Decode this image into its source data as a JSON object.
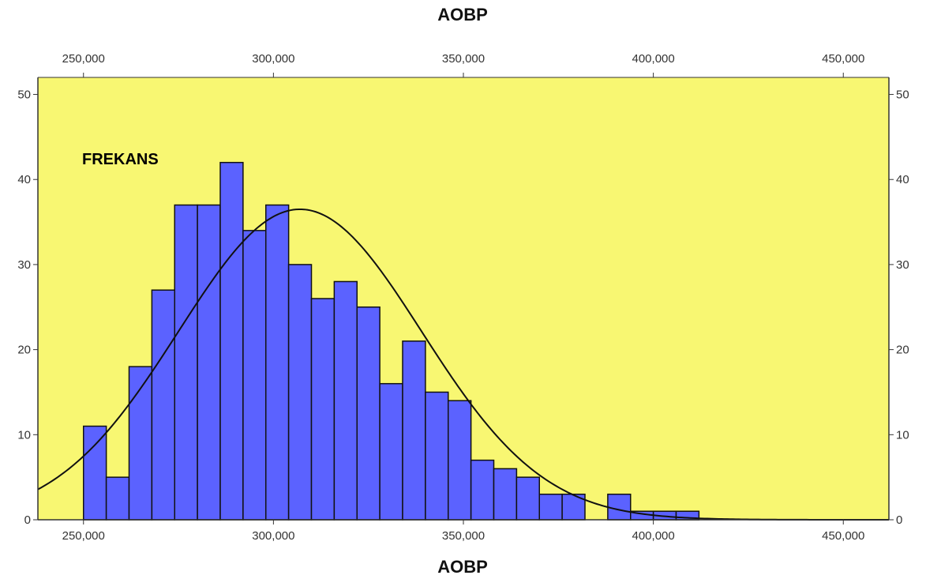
{
  "chart_data": {
    "type": "bar",
    "title": "AOBP",
    "xlabel": "AOBP",
    "ylabel": "FREKANS",
    "xlim": [
      238000,
      462000
    ],
    "ylim": [
      0,
      52
    ],
    "bin_width": 6000,
    "x_ticks": [
      250000,
      300000,
      350000,
      400000,
      450000
    ],
    "x_tick_labels": [
      "250,000",
      "300,000",
      "350,000",
      "400,000",
      "450,000"
    ],
    "y_ticks": [
      0,
      10,
      20,
      30,
      40,
      50
    ],
    "y_tick_labels_left": [
      "0",
      "10",
      "20",
      "30",
      "40",
      "50"
    ],
    "y_tick_labels_right": [
      "0",
      "10",
      "20",
      "30",
      "40",
      "50"
    ],
    "bins": [
      {
        "start": 250000,
        "value": 11
      },
      {
        "start": 256000,
        "value": 5
      },
      {
        "start": 262000,
        "value": 18
      },
      {
        "start": 268000,
        "value": 27
      },
      {
        "start": 274000,
        "value": 37
      },
      {
        "start": 280000,
        "value": 37
      },
      {
        "start": 286000,
        "value": 42
      },
      {
        "start": 292000,
        "value": 34
      },
      {
        "start": 298000,
        "value": 37
      },
      {
        "start": 304000,
        "value": 30
      },
      {
        "start": 310000,
        "value": 26
      },
      {
        "start": 316000,
        "value": 28
      },
      {
        "start": 322000,
        "value": 25
      },
      {
        "start": 328000,
        "value": 16
      },
      {
        "start": 334000,
        "value": 21
      },
      {
        "start": 340000,
        "value": 15
      },
      {
        "start": 346000,
        "value": 14
      },
      {
        "start": 352000,
        "value": 7
      },
      {
        "start": 358000,
        "value": 6
      },
      {
        "start": 364000,
        "value": 5
      },
      {
        "start": 370000,
        "value": 3
      },
      {
        "start": 376000,
        "value": 3
      },
      {
        "start": 382000,
        "value": 0
      },
      {
        "start": 388000,
        "value": 3
      },
      {
        "start": 394000,
        "value": 1
      },
      {
        "start": 400000,
        "value": 1
      },
      {
        "start": 406000,
        "value": 1
      }
    ],
    "normal_curve": {
      "mean": 307000,
      "sd": 32000,
      "peak": 36.5
    },
    "grid": false,
    "colors": {
      "plot_background": "#f8f772",
      "bar_fill": "#5b62ff",
      "bar_stroke": "#111111",
      "curve": "#111111",
      "axis": "#333333"
    }
  }
}
